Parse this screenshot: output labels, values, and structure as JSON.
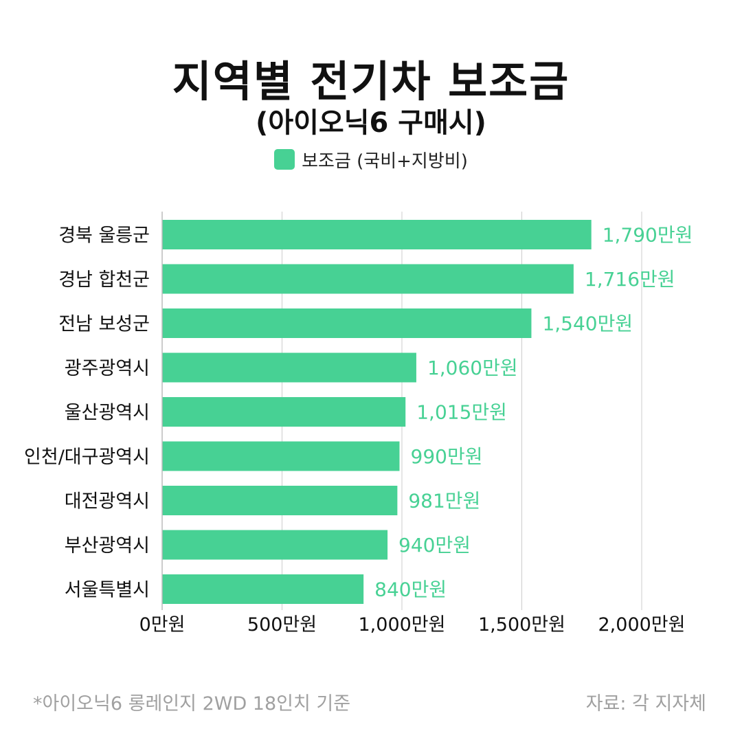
{
  "header": {
    "title": "지역별 전기차 보조금",
    "subtitle": "(아이오닉6 구매시)"
  },
  "colors": {
    "bar": "#47d194",
    "value_label": "#47d194",
    "grid": "#cccccc",
    "text": "#111111",
    "muted": "#a0a0a0"
  },
  "chart_data": {
    "type": "bar",
    "orientation": "horizontal",
    "categories": [
      "경북 울릉군",
      "경남 합천군",
      "전남 보성군",
      "광주광역시",
      "울산광역시",
      "인천/대구광역시",
      "대전광역시",
      "부산광역시",
      "서울특별시"
    ],
    "series": [
      {
        "name": "보조금 (국비+지방비)",
        "values": [
          1790,
          1716,
          1540,
          1060,
          1015,
          990,
          981,
          940,
          840
        ]
      }
    ],
    "value_labels": [
      "1,790만원",
      "1,716만원",
      "1,540만원",
      "1,060만원",
      "1,015만원",
      "990만원",
      "981만원",
      "940만원",
      "840만원"
    ],
    "x_ticks": [
      0,
      500,
      1000,
      1500,
      2000
    ],
    "x_tick_labels": [
      "0만원",
      "500만원",
      "1,000만원",
      "1,500만원",
      "2,000만원"
    ],
    "xlim": [
      0,
      2000
    ],
    "grid": true,
    "legend_position": "top-center"
  },
  "footer": {
    "note": "*아이오닉6 롱레인지 2WD 18인치 기준",
    "source": "자료: 각 지자체"
  }
}
